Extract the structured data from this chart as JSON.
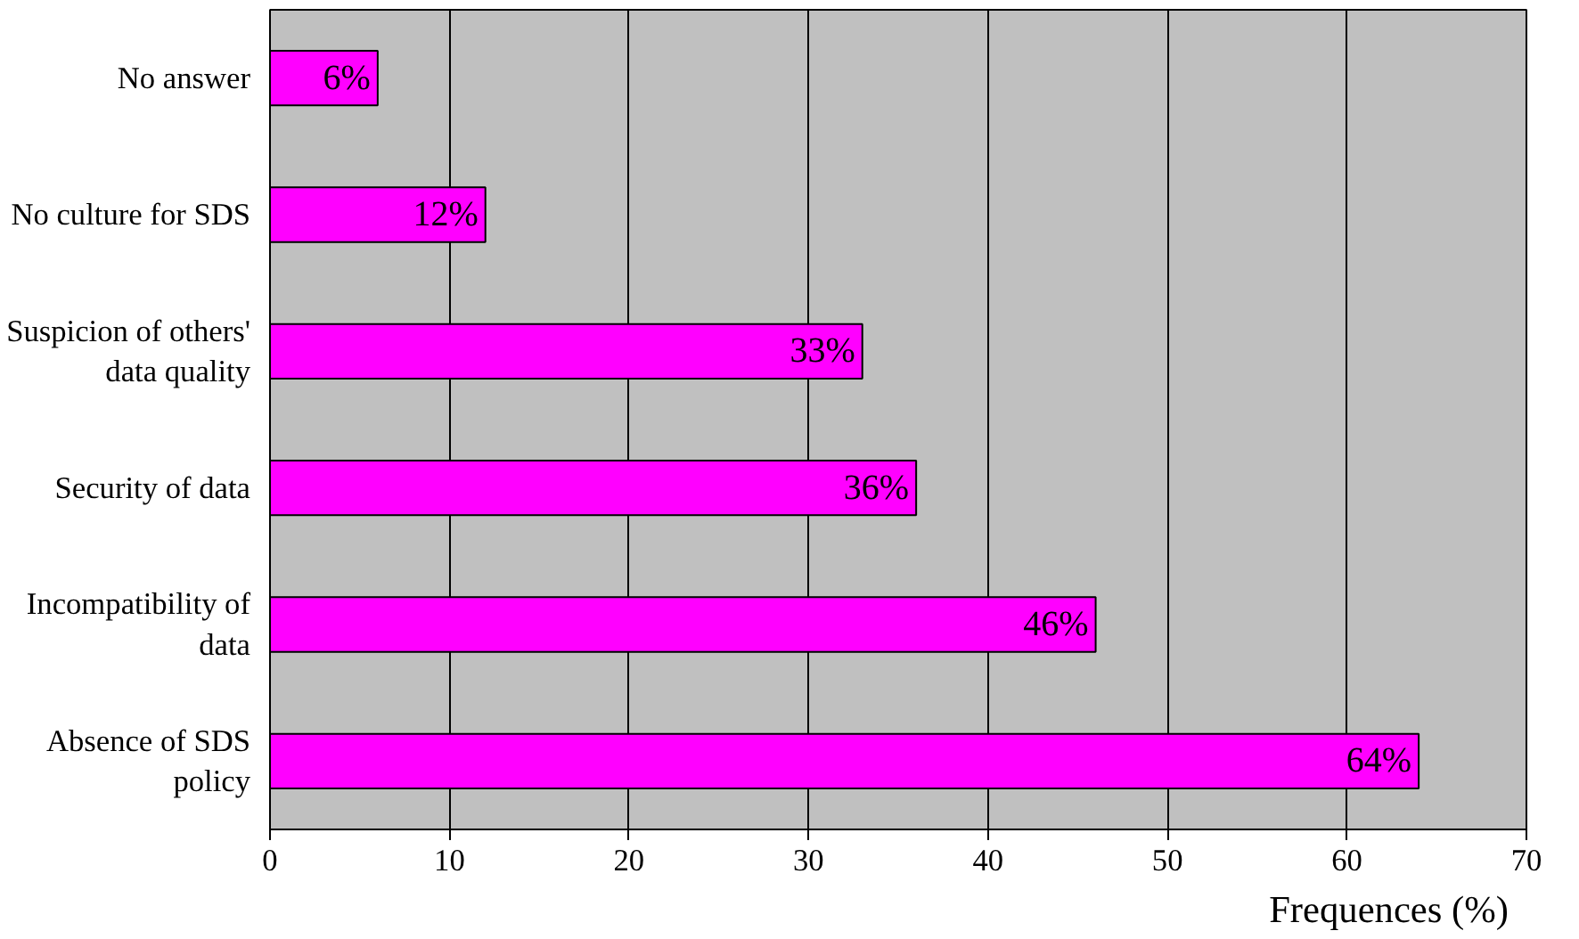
{
  "chart_data": {
    "type": "bar",
    "orientation": "horizontal",
    "categories": [
      "No answer",
      "No culture for SDS",
      "Suspicion of others'\ndata quality",
      "Security of data",
      "Incompatibility of\ndata",
      "Absence of SDS\npolicy"
    ],
    "values": [
      6,
      12,
      33,
      36,
      46,
      64
    ],
    "value_labels": [
      "6%",
      "12%",
      "33%",
      "36%",
      "46%",
      "64%"
    ],
    "color": "#ff00ff",
    "xlabel": "Frequences (%)",
    "xlim": [
      0,
      70
    ],
    "xticks": [
      0,
      10,
      20,
      30,
      40,
      50,
      60,
      70
    ],
    "grid": "x"
  }
}
